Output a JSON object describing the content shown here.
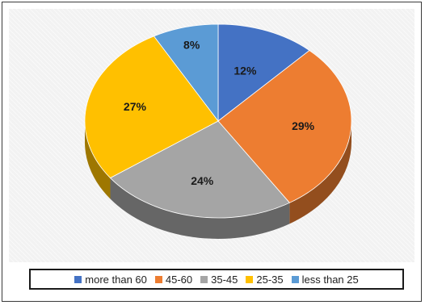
{
  "chart_data": {
    "type": "pie",
    "title": "",
    "categories": [
      "more than 60",
      "45-60",
      "35-45",
      "25-35",
      "less than 25"
    ],
    "values": [
      12,
      29,
      24,
      27,
      8
    ],
    "value_labels": [
      "12%",
      "29%",
      "24%",
      "27%",
      "8%"
    ],
    "colors": [
      "#4472c4",
      "#ed7d31",
      "#a5a5a5",
      "#ffc000",
      "#5b9bd5"
    ],
    "legend_placement": "bottom",
    "style": "3d"
  }
}
